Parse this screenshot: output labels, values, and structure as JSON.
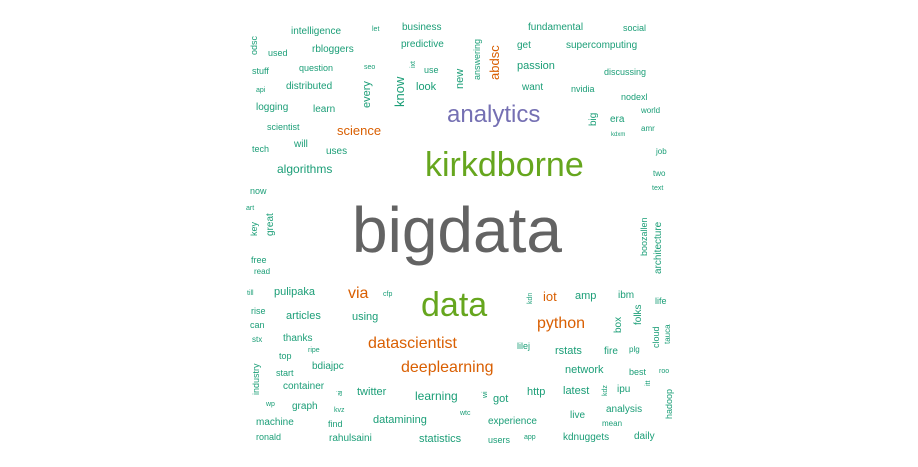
{
  "colors": {
    "grey": "#636363",
    "green": "#66a61e",
    "purple": "#7570b3",
    "orange": "#d95f02",
    "teal": "#1b9e77"
  },
  "words": [
    {
      "text": "bigdata",
      "color": "grey"
    },
    {
      "text": "kirkdborne",
      "color": "green"
    },
    {
      "text": "data",
      "color": "green"
    },
    {
      "text": "analytics",
      "color": "purple"
    },
    {
      "text": "datascientist",
      "color": "orange"
    },
    {
      "text": "deeplearning",
      "color": "orange"
    },
    {
      "text": "python",
      "color": "orange"
    },
    {
      "text": "via",
      "color": "orange"
    },
    {
      "text": "science",
      "color": "orange"
    },
    {
      "text": "algorithms",
      "color": "teal"
    },
    {
      "text": "iot",
      "color": "orange"
    },
    {
      "text": "abdsc",
      "color": "orange"
    },
    {
      "text": "intelligence",
      "color": "teal"
    },
    {
      "text": "let",
      "color": "teal"
    },
    {
      "text": "business",
      "color": "teal"
    },
    {
      "text": "fundamental",
      "color": "teal"
    },
    {
      "text": "social",
      "color": "teal"
    },
    {
      "text": "odsc",
      "color": "teal"
    },
    {
      "text": "used",
      "color": "teal"
    },
    {
      "text": "rbloggers",
      "color": "teal"
    },
    {
      "text": "predictive",
      "color": "teal"
    },
    {
      "text": "answering",
      "color": "teal"
    },
    {
      "text": "get",
      "color": "teal"
    },
    {
      "text": "supercomputing",
      "color": "teal"
    },
    {
      "text": "stuff",
      "color": "teal"
    },
    {
      "text": "question",
      "color": "teal"
    },
    {
      "text": "seo",
      "color": "teal"
    },
    {
      "text": "ixt",
      "color": "teal"
    },
    {
      "text": "use",
      "color": "teal"
    },
    {
      "text": "new",
      "color": "teal"
    },
    {
      "text": "passion",
      "color": "teal"
    },
    {
      "text": "discussing",
      "color": "teal"
    },
    {
      "text": "know",
      "color": "teal"
    },
    {
      "text": "api",
      "color": "teal"
    },
    {
      "text": "distributed",
      "color": "teal"
    },
    {
      "text": "look",
      "color": "teal"
    },
    {
      "text": "want",
      "color": "teal"
    },
    {
      "text": "nvidia",
      "color": "teal"
    },
    {
      "text": "nodexl",
      "color": "teal"
    },
    {
      "text": "every",
      "color": "teal"
    },
    {
      "text": "logging",
      "color": "teal"
    },
    {
      "text": "learn",
      "color": "teal"
    },
    {
      "text": "world",
      "color": "teal"
    },
    {
      "text": "big",
      "color": "teal"
    },
    {
      "text": "era",
      "color": "teal"
    },
    {
      "text": "scientist",
      "color": "teal"
    },
    {
      "text": "amr",
      "color": "teal"
    },
    {
      "text": "kdxm",
      "color": "teal"
    },
    {
      "text": "will",
      "color": "teal"
    },
    {
      "text": "tech",
      "color": "teal"
    },
    {
      "text": "uses",
      "color": "teal"
    },
    {
      "text": "job",
      "color": "teal"
    },
    {
      "text": "two",
      "color": "teal"
    },
    {
      "text": "now",
      "color": "teal"
    },
    {
      "text": "text",
      "color": "teal"
    },
    {
      "text": "art",
      "color": "teal"
    },
    {
      "text": "key",
      "color": "teal"
    },
    {
      "text": "great",
      "color": "teal"
    },
    {
      "text": "boozallen",
      "color": "teal"
    },
    {
      "text": "architecture",
      "color": "teal"
    },
    {
      "text": "free",
      "color": "teal"
    },
    {
      "text": "read",
      "color": "teal"
    },
    {
      "text": "till",
      "color": "teal"
    },
    {
      "text": "pulipaka",
      "color": "teal"
    },
    {
      "text": "cfp",
      "color": "teal"
    },
    {
      "text": "kdn",
      "color": "teal"
    },
    {
      "text": "amp",
      "color": "teal"
    },
    {
      "text": "ibm",
      "color": "teal"
    },
    {
      "text": "life",
      "color": "teal"
    },
    {
      "text": "rise",
      "color": "teal"
    },
    {
      "text": "articles",
      "color": "teal"
    },
    {
      "text": "using",
      "color": "teal"
    },
    {
      "text": "box",
      "color": "teal"
    },
    {
      "text": "folks",
      "color": "teal"
    },
    {
      "text": "cloud",
      "color": "teal"
    },
    {
      "text": "tauca",
      "color": "teal"
    },
    {
      "text": "can",
      "color": "teal"
    },
    {
      "text": "stx",
      "color": "teal"
    },
    {
      "text": "thanks",
      "color": "teal"
    },
    {
      "text": "lilej",
      "color": "teal"
    },
    {
      "text": "rstats",
      "color": "teal"
    },
    {
      "text": "fire",
      "color": "teal"
    },
    {
      "text": "plg",
      "color": "teal"
    },
    {
      "text": "top",
      "color": "teal"
    },
    {
      "text": "ripe",
      "color": "teal"
    },
    {
      "text": "industry",
      "color": "teal"
    },
    {
      "text": "bdiajpc",
      "color": "teal"
    },
    {
      "text": "start",
      "color": "teal"
    },
    {
      "text": "network",
      "color": "teal"
    },
    {
      "text": "best",
      "color": "teal"
    },
    {
      "text": "roo",
      "color": "teal"
    },
    {
      "text": "container",
      "color": "teal"
    },
    {
      "text": "ipu",
      "color": "teal"
    },
    {
      "text": "itt",
      "color": "teal"
    },
    {
      "text": "ai",
      "color": "teal"
    },
    {
      "text": "twitter",
      "color": "teal"
    },
    {
      "text": "learning",
      "color": "teal"
    },
    {
      "text": "got",
      "color": "teal"
    },
    {
      "text": "http",
      "color": "teal"
    },
    {
      "text": "latest",
      "color": "teal"
    },
    {
      "text": "kdz",
      "color": "teal"
    },
    {
      "text": "wp",
      "color": "teal"
    },
    {
      "text": "graph",
      "color": "teal"
    },
    {
      "text": "kvz",
      "color": "teal"
    },
    {
      "text": "wtc",
      "color": "teal"
    },
    {
      "text": "wi",
      "color": "teal"
    },
    {
      "text": "hadoop",
      "color": "teal"
    },
    {
      "text": "analysis",
      "color": "teal"
    },
    {
      "text": "machine",
      "color": "teal"
    },
    {
      "text": "find",
      "color": "teal"
    },
    {
      "text": "datamining",
      "color": "teal"
    },
    {
      "text": "experience",
      "color": "teal"
    },
    {
      "text": "live",
      "color": "teal"
    },
    {
      "text": "mean",
      "color": "teal"
    },
    {
      "text": "ronald",
      "color": "teal"
    },
    {
      "text": "rahulsaini",
      "color": "teal"
    },
    {
      "text": "statistics",
      "color": "teal"
    },
    {
      "text": "users",
      "color": "teal"
    },
    {
      "text": "app",
      "color": "teal"
    },
    {
      "text": "kdnuggets",
      "color": "teal"
    },
    {
      "text": "daily",
      "color": "teal"
    }
  ]
}
